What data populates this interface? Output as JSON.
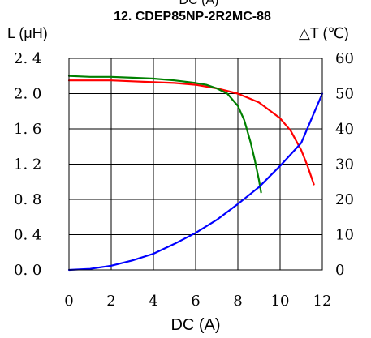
{
  "chart_data": {
    "type": "line",
    "top_clipped_text": "DC (A)",
    "title": "12. CDEP85NP-2R2MC-88",
    "left_axis_label": "L (μH)",
    "right_axis_label": "△T (℃)",
    "xlabel": "DC (A)",
    "xlim": [
      0,
      12
    ],
    "left_ylim": [
      0.0,
      2.4
    ],
    "right_ylim": [
      0,
      60
    ],
    "x_ticks": [
      "0",
      "2",
      "4",
      "6",
      "8",
      "10",
      "12"
    ],
    "left_y_ticks": [
      "0. 0",
      "0. 4",
      "0. 8",
      "1. 2",
      "1. 6",
      "2. 0",
      "2. 4"
    ],
    "right_y_ticks": [
      "0",
      "10",
      "20",
      "30",
      "40",
      "50",
      "60"
    ],
    "grid": true,
    "series": [
      {
        "axis": "left",
        "color": "#ff0000",
        "x": [
          0,
          1,
          2,
          3,
          4,
          5,
          6,
          7,
          8,
          9,
          10,
          10.5,
          11,
          11.3,
          11.6
        ],
        "y": [
          2.15,
          2.15,
          2.15,
          2.14,
          2.13,
          2.12,
          2.1,
          2.06,
          2.0,
          1.9,
          1.72,
          1.58,
          1.36,
          1.18,
          0.97
        ]
      },
      {
        "axis": "left",
        "color": "#008000",
        "x": [
          0,
          1,
          2,
          3,
          4,
          5,
          6,
          6.5,
          7,
          7.5,
          8,
          8.3,
          8.6,
          8.8,
          9.0,
          9.1
        ],
        "y": [
          2.2,
          2.19,
          2.19,
          2.18,
          2.17,
          2.15,
          2.12,
          2.1,
          2.06,
          2.0,
          1.86,
          1.7,
          1.45,
          1.25,
          1.02,
          0.88
        ]
      },
      {
        "axis": "right",
        "color": "#0000ff",
        "x": [
          0,
          1,
          2,
          3,
          4,
          5,
          6,
          7,
          8,
          9,
          10,
          11,
          12
        ],
        "y": [
          0,
          0.3,
          1.2,
          2.7,
          4.6,
          7.4,
          10.5,
          14.2,
          18.7,
          23.5,
          29.5,
          36.0,
          50.0
        ]
      }
    ]
  }
}
